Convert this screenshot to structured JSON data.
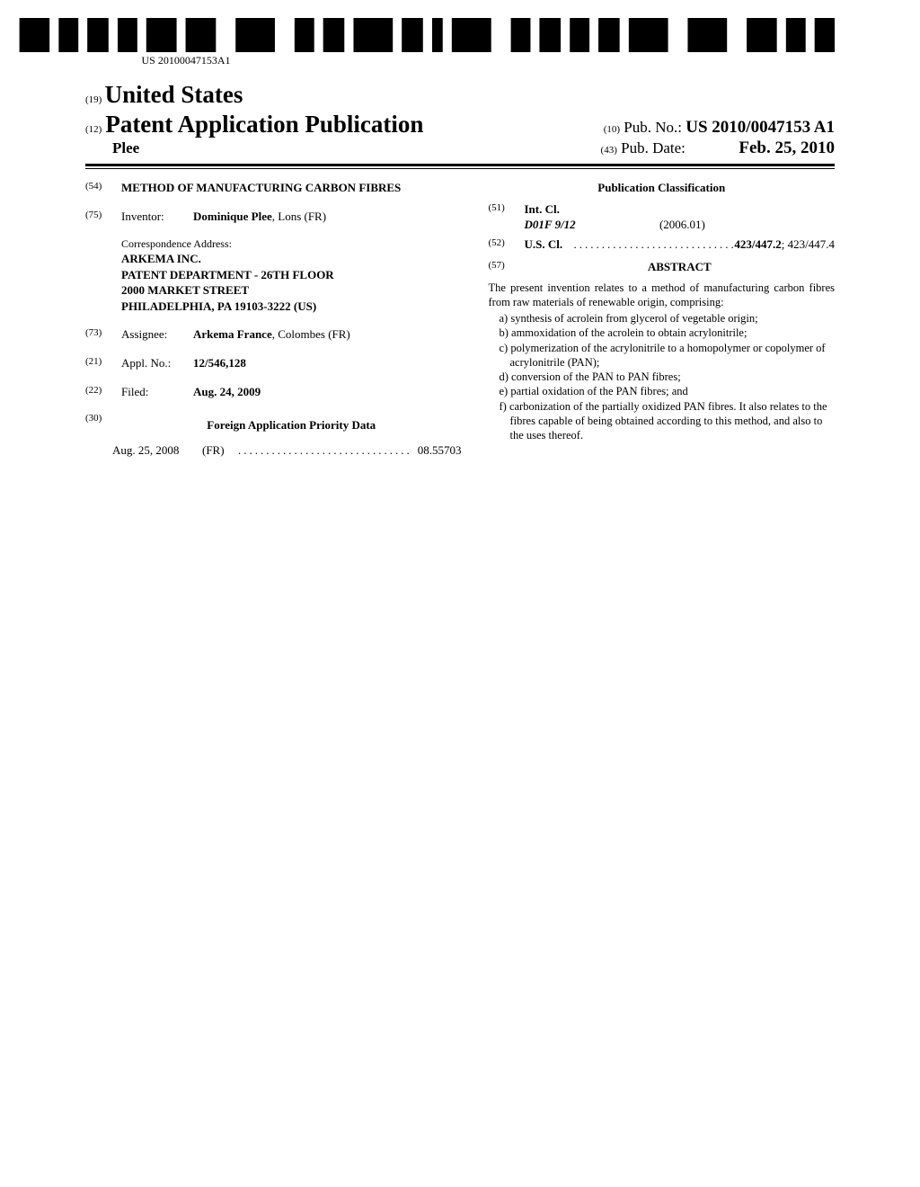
{
  "barcode_text": "US 20100047153A1",
  "header": {
    "code19": "(19)",
    "country": "United States",
    "code12": "(12)",
    "pubtype": "Patent Application Publication",
    "code10": "(10)",
    "pubno_label": "Pub. No.:",
    "pubno_value": "US 2010/0047153 A1",
    "author": "Plee",
    "code43": "(43)",
    "pubdate_label": "Pub. Date:",
    "pubdate_value": "Feb. 25, 2010"
  },
  "left": {
    "code54": "(54)",
    "title": "METHOD OF MANUFACTURING CARBON FIBRES",
    "code75": "(75)",
    "inventor_label": "Inventor:",
    "inventor_value_bold": "Dominique Plee",
    "inventor_value_rest": ", Lons (FR)",
    "corr_lead": "Correspondence Address:",
    "corr_l1": "ARKEMA INC.",
    "corr_l2": "PATENT DEPARTMENT - 26TH FLOOR",
    "corr_l3": "2000 MARKET STREET",
    "corr_l4": "PHILADELPHIA, PA 19103-3222 (US)",
    "code73": "(73)",
    "assignee_label": "Assignee:",
    "assignee_bold": "Arkema France",
    "assignee_rest": ", Colombes (FR)",
    "code21": "(21)",
    "applno_label": "Appl. No.:",
    "applno_value": "12/546,128",
    "code22": "(22)",
    "filed_label": "Filed:",
    "filed_value": "Aug. 24, 2009",
    "code30": "(30)",
    "priority_header": "Foreign Application Priority Data",
    "priority_date": "Aug. 25, 2008",
    "priority_country": "(FR)",
    "priority_num": "08.55703"
  },
  "right": {
    "pubclass_header": "Publication Classification",
    "code51": "(51)",
    "intcl_label": "Int. Cl.",
    "intcl_code": "D01F 9/12",
    "intcl_year": "(2006.01)",
    "code52": "(52)",
    "uscl_label": "U.S. Cl.",
    "uscl_bold": "423/447.2",
    "uscl_rest": "; 423/447.4",
    "code57": "(57)",
    "abstract_label": "ABSTRACT",
    "abstract_intro": "The present invention relates to a method of manufacturing carbon fibres from raw materials of renewable origin, comprising:",
    "abstract_items": [
      "a) synthesis of acrolein from glycerol of vegetable origin;",
      "b) ammoxidation of the acrolein to obtain acrylonitrile;",
      "c) polymerization of the acrylonitrile to a homopolymer or copolymer of acrylonitrile (PAN);",
      "d) conversion of the PAN to PAN fibres;",
      "e) partial oxidation of the PAN fibres; and",
      "f) carbonization of the partially oxidized PAN fibres. It also relates to the fibres capable of being obtained according to this method, and also to the uses thereof."
    ]
  }
}
